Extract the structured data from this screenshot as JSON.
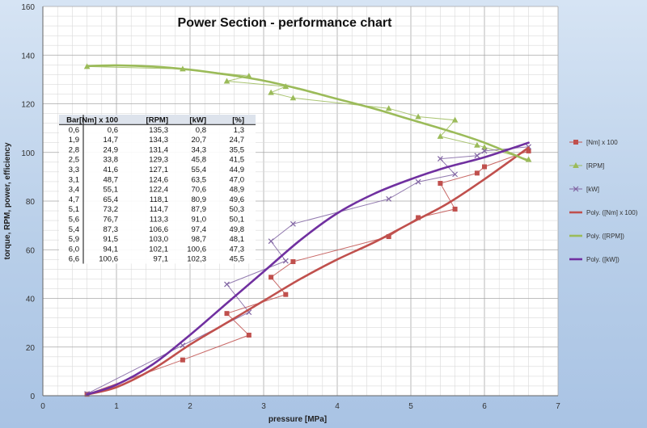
{
  "chart_data": {
    "type": "scatter",
    "title": "Power Section - performance chart",
    "xlabel": "pressure [MPa]",
    "ylabel": "torque, RPM, power, efficiency",
    "xlim": [
      0,
      7
    ],
    "ylim": [
      0,
      160
    ],
    "x_ticks": [
      "0",
      "1",
      "2",
      "3",
      "4",
      "5",
      "6",
      "7"
    ],
    "y_ticks": [
      "0",
      "20",
      "40",
      "60",
      "80",
      "100",
      "120",
      "140",
      "160"
    ],
    "grid": true,
    "legend_position": "right",
    "x": [
      0.6,
      1.9,
      2.8,
      2.5,
      3.3,
      3.1,
      3.4,
      4.7,
      5.1,
      5.6,
      5.4,
      5.9,
      6.0,
      6.6
    ],
    "series": [
      {
        "name": "[Nm] x 100",
        "values": [
          0.6,
          14.7,
          24.9,
          33.8,
          41.6,
          48.7,
          55.1,
          65.4,
          73.2,
          76.7,
          87.3,
          91.5,
          94.1,
          100.6
        ],
        "color": "#c0504d",
        "marker": "square"
      },
      {
        "name": "[RPM]",
        "values": [
          135.3,
          134.3,
          131.4,
          129.3,
          127.1,
          124.6,
          122.4,
          118.1,
          114.7,
          113.3,
          106.6,
          103.0,
          102.1,
          97.1
        ],
        "color": "#9bbb59",
        "marker": "triangle"
      },
      {
        "name": "[kW]",
        "values": [
          0.8,
          20.7,
          34.3,
          45.8,
          55.4,
          63.5,
          70.6,
          80.9,
          87.9,
          91.0,
          97.4,
          98.7,
          100.6,
          102.3
        ],
        "color": "#8064a2",
        "marker": "x"
      }
    ],
    "trendlines": [
      {
        "name": "Poly. ([Nm] x 100)",
        "color": "#c0504d",
        "x": [
          0.6,
          1.0,
          1.5,
          2.0,
          2.5,
          3.0,
          3.5,
          4.0,
          4.5,
          5.0,
          5.5,
          6.0,
          6.6
        ],
        "values": [
          0.5,
          3.5,
          11,
          21,
          30,
          39,
          48,
          56,
          63,
          71,
          79,
          89,
          102
        ]
      },
      {
        "name": "Poly. ([RPM])",
        "color": "#9bbb59",
        "x": [
          0.6,
          1.0,
          1.5,
          2.0,
          2.5,
          3.0,
          3.5,
          4.0,
          4.5,
          5.0,
          5.5,
          6.0,
          6.6
        ],
        "values": [
          135.5,
          135.8,
          135.3,
          134,
          132,
          129.5,
          126,
          122,
          118,
          113.5,
          109,
          104,
          96.5
        ]
      },
      {
        "name": "Poly. ([kW])",
        "color": "#7030a0",
        "x": [
          0.6,
          1.0,
          1.5,
          2.0,
          2.5,
          3.0,
          3.5,
          4.0,
          4.5,
          5.0,
          5.5,
          6.0,
          6.6
        ],
        "values": [
          0.5,
          4.5,
          13,
          25,
          38,
          51,
          64,
          75,
          83,
          89,
          94,
          98,
          104
        ]
      }
    ],
    "table": {
      "headers": [
        "Bar",
        "[Nm] x 100",
        "[RPM]",
        "[kW]",
        "[%]"
      ],
      "rows": [
        [
          "0,6",
          "0,6",
          "135,3",
          "0,8",
          "1,3"
        ],
        [
          "1,9",
          "14,7",
          "134,3",
          "20,7",
          "24,7"
        ],
        [
          "2,8",
          "24,9",
          "131,4",
          "34,3",
          "35,5"
        ],
        [
          "2,5",
          "33,8",
          "129,3",
          "45,8",
          "41,5"
        ],
        [
          "3,3",
          "41,6",
          "127,1",
          "55,4",
          "44,9"
        ],
        [
          "3,1",
          "48,7",
          "124,6",
          "63,5",
          "47,0"
        ],
        [
          "3,4",
          "55,1",
          "122,4",
          "70,6",
          "48,9"
        ],
        [
          "4,7",
          "65,4",
          "118,1",
          "80,9",
          "49,6"
        ],
        [
          "5,1",
          "73,2",
          "114,7",
          "87,9",
          "50,3"
        ],
        [
          "5,6",
          "76,7",
          "113,3",
          "91,0",
          "50,1"
        ],
        [
          "5,4",
          "87,3",
          "106,6",
          "97,4",
          "49,8"
        ],
        [
          "5,9",
          "91,5",
          "103,0",
          "98,7",
          "48,1"
        ],
        [
          "6,0",
          "94,1",
          "102,1",
          "100,6",
          "47,3"
        ],
        [
          "6,6",
          "100,6",
          "97,1",
          "102,3",
          "45,5"
        ]
      ]
    }
  }
}
